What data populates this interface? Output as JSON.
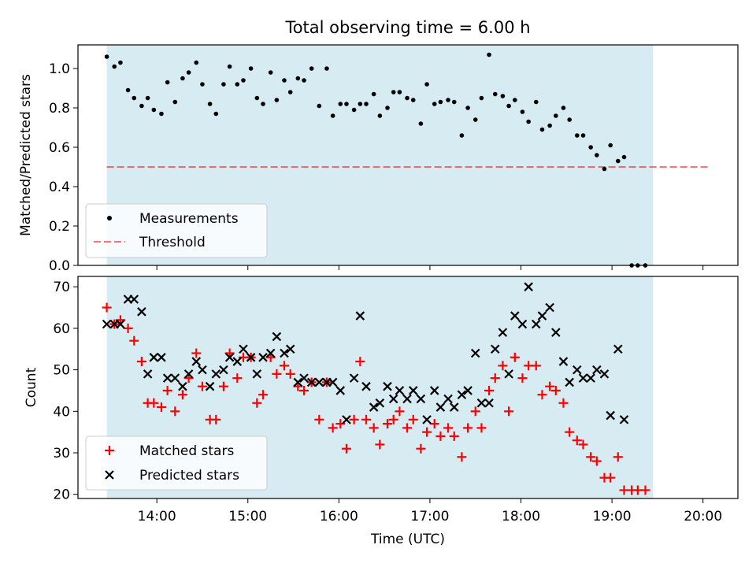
{
  "figure": {
    "title": "Total observing time = 6.00 h"
  },
  "chart_data": [
    {
      "type": "scatter",
      "title": "Total observing time = 6.00 h",
      "xlabel": "",
      "ylabel": "Matched/Predicted stars",
      "xlim": [
        "13:08",
        "20:23"
      ],
      "ylim": [
        0,
        1.12
      ],
      "yticks": [
        "0.0",
        "0.2",
        "0.4",
        "0.6",
        "0.8",
        "1.0"
      ],
      "shaded_span": {
        "start": "13:27",
        "end": "19:27",
        "color": "#add8e6"
      },
      "legend": {
        "placement": "lower left",
        "entries": [
          "Measurements",
          "Threshold"
        ]
      },
      "threshold": {
        "name": "Threshold",
        "value": 0.5,
        "x_start": "13:27",
        "x_end": "20:03",
        "color": "#ff0000"
      },
      "series": [
        {
          "name": "Measurements",
          "color": "#000000",
          "marker": "dot",
          "points": [
            [
              "13:27",
              1.06
            ],
            [
              "13:32",
              1.01
            ],
            [
              "13:36",
              1.03
            ],
            [
              "13:41",
              0.89
            ],
            [
              "13:45",
              0.85
            ],
            [
              "13:50",
              0.81
            ],
            [
              "13:54",
              0.85
            ],
            [
              "13:58",
              0.79
            ],
            [
              "14:03",
              0.77
            ],
            [
              "14:07",
              0.93
            ],
            [
              "14:12",
              0.83
            ],
            [
              "14:17",
              0.95
            ],
            [
              "14:21",
              0.98
            ],
            [
              "14:26",
              1.03
            ],
            [
              "14:30",
              0.92
            ],
            [
              "14:35",
              0.82
            ],
            [
              "14:39",
              0.77
            ],
            [
              "14:44",
              0.92
            ],
            [
              "14:48",
              1.01
            ],
            [
              "14:53",
              0.92
            ],
            [
              "14:57",
              0.94
            ],
            [
              "15:02",
              1.0
            ],
            [
              "15:06",
              0.85
            ],
            [
              "15:10",
              0.82
            ],
            [
              "15:15",
              0.98
            ],
            [
              "15:19",
              0.84
            ],
            [
              "15:24",
              0.94
            ],
            [
              "15:28",
              0.88
            ],
            [
              "15:33",
              0.95
            ],
            [
              "15:37",
              0.94
            ],
            [
              "15:42",
              1.0
            ],
            [
              "15:47",
              0.81
            ],
            [
              "15:52",
              1.0
            ],
            [
              "15:56",
              0.76
            ],
            [
              "16:01",
              0.82
            ],
            [
              "16:05",
              0.82
            ],
            [
              "16:10",
              0.79
            ],
            [
              "16:14",
              0.82
            ],
            [
              "16:18",
              0.82
            ],
            [
              "16:23",
              0.87
            ],
            [
              "16:27",
              0.76
            ],
            [
              "16:32",
              0.8
            ],
            [
              "16:36",
              0.88
            ],
            [
              "16:40",
              0.88
            ],
            [
              "16:45",
              0.85
            ],
            [
              "16:49",
              0.84
            ],
            [
              "16:54",
              0.72
            ],
            [
              "16:58",
              0.92
            ],
            [
              "17:03",
              0.82
            ],
            [
              "17:07",
              0.83
            ],
            [
              "17:12",
              0.84
            ],
            [
              "17:16",
              0.83
            ],
            [
              "17:21",
              0.66
            ],
            [
              "17:25",
              0.8
            ],
            [
              "17:30",
              0.74
            ],
            [
              "17:34",
              0.85
            ],
            [
              "17:39",
              1.07
            ],
            [
              "17:43",
              0.87
            ],
            [
              "17:48",
              0.86
            ],
            [
              "17:52",
              0.81
            ],
            [
              "17:56",
              0.84
            ],
            [
              "18:01",
              0.78
            ],
            [
              "18:05",
              0.73
            ],
            [
              "18:10",
              0.83
            ],
            [
              "18:14",
              0.69
            ],
            [
              "18:19",
              0.71
            ],
            [
              "18:23",
              0.76
            ],
            [
              "18:28",
              0.8
            ],
            [
              "18:32",
              0.74
            ],
            [
              "18:37",
              0.66
            ],
            [
              "18:41",
              0.66
            ],
            [
              "18:46",
              0.6
            ],
            [
              "18:50",
              0.56
            ],
            [
              "18:55",
              0.49
            ],
            [
              "18:59",
              0.61
            ],
            [
              "19:04",
              0.53
            ],
            [
              "19:08",
              0.55
            ],
            [
              "19:13",
              0.0
            ],
            [
              "19:17",
              0.0
            ],
            [
              "19:22",
              0.0
            ]
          ]
        }
      ]
    },
    {
      "type": "scatter",
      "title": "",
      "xlabel": "Time (UTC)",
      "ylabel": "Count",
      "xlim": [
        "13:08",
        "20:23"
      ],
      "ylim": [
        19,
        72.5
      ],
      "xticks": [
        "14:00",
        "15:00",
        "16:00",
        "17:00",
        "18:00",
        "19:00",
        "20:00"
      ],
      "yticks": [
        "20",
        "30",
        "40",
        "50",
        "60",
        "70"
      ],
      "shaded_span": {
        "start": "13:27",
        "end": "19:27",
        "color": "#add8e6"
      },
      "legend": {
        "placement": "lower left",
        "entries": [
          "Matched stars",
          "Predicted stars"
        ]
      },
      "series": [
        {
          "name": "Matched stars",
          "color": "#ff0000",
          "marker": "plus",
          "points": [
            [
              "13:27",
              65
            ],
            [
              "13:32",
              61
            ],
            [
              "13:36",
              62
            ],
            [
              "13:41",
              60
            ],
            [
              "13:45",
              57
            ],
            [
              "13:50",
              52
            ],
            [
              "13:54",
              42
            ],
            [
              "13:58",
              42
            ],
            [
              "14:03",
              41
            ],
            [
              "14:07",
              45
            ],
            [
              "14:12",
              40
            ],
            [
              "14:17",
              44
            ],
            [
              "14:21",
              48
            ],
            [
              "14:26",
              54
            ],
            [
              "14:30",
              46
            ],
            [
              "14:35",
              38
            ],
            [
              "14:39",
              38
            ],
            [
              "14:44",
              46
            ],
            [
              "14:48",
              54
            ],
            [
              "14:53",
              48
            ],
            [
              "14:57",
              53
            ],
            [
              "15:02",
              53
            ],
            [
              "15:06",
              42
            ],
            [
              "15:10",
              44
            ],
            [
              "15:15",
              53
            ],
            [
              "15:19",
              49
            ],
            [
              "15:24",
              51
            ],
            [
              "15:28",
              49
            ],
            [
              "15:33",
              46
            ],
            [
              "15:37",
              45
            ],
            [
              "15:42",
              47
            ],
            [
              "15:47",
              38
            ],
            [
              "15:52",
              47
            ],
            [
              "15:56",
              36
            ],
            [
              "16:01",
              37
            ],
            [
              "16:05",
              31
            ],
            [
              "16:10",
              38
            ],
            [
              "16:14",
              52
            ],
            [
              "16:18",
              38
            ],
            [
              "16:23",
              36
            ],
            [
              "16:27",
              32
            ],
            [
              "16:32",
              37
            ],
            [
              "16:36",
              38
            ],
            [
              "16:40",
              40
            ],
            [
              "16:45",
              36
            ],
            [
              "16:49",
              38
            ],
            [
              "16:54",
              31
            ],
            [
              "16:58",
              35
            ],
            [
              "17:03",
              37
            ],
            [
              "17:07",
              34
            ],
            [
              "17:12",
              36
            ],
            [
              "17:16",
              34
            ],
            [
              "17:21",
              29
            ],
            [
              "17:25",
              36
            ],
            [
              "17:30",
              40
            ],
            [
              "17:34",
              36
            ],
            [
              "17:39",
              45
            ],
            [
              "17:43",
              48
            ],
            [
              "17:48",
              51
            ],
            [
              "17:52",
              40
            ],
            [
              "17:56",
              53
            ],
            [
              "18:01",
              48
            ],
            [
              "18:05",
              51
            ],
            [
              "18:10",
              51
            ],
            [
              "18:14",
              44
            ],
            [
              "18:19",
              46
            ],
            [
              "18:23",
              45
            ],
            [
              "18:28",
              42
            ],
            [
              "18:32",
              35
            ],
            [
              "18:37",
              33
            ],
            [
              "18:41",
              32
            ],
            [
              "18:46",
              29
            ],
            [
              "18:50",
              28
            ],
            [
              "18:55",
              24
            ],
            [
              "18:59",
              24
            ],
            [
              "19:04",
              29
            ],
            [
              "19:08",
              21
            ],
            [
              "19:13",
              21
            ],
            [
              "19:17",
              21
            ],
            [
              "19:22",
              21
            ]
          ]
        },
        {
          "name": "Predicted stars",
          "color": "#000000",
          "marker": "x",
          "points": [
            [
              "13:27",
              61
            ],
            [
              "13:32",
              61
            ],
            [
              "13:36",
              61
            ],
            [
              "13:41",
              67
            ],
            [
              "13:45",
              67
            ],
            [
              "13:50",
              64
            ],
            [
              "13:54",
              49
            ],
            [
              "13:58",
              53
            ],
            [
              "14:03",
              53
            ],
            [
              "14:07",
              48
            ],
            [
              "14:12",
              48
            ],
            [
              "14:17",
              46
            ],
            [
              "14:21",
              49
            ],
            [
              "14:26",
              52
            ],
            [
              "14:30",
              50
            ],
            [
              "14:35",
              46
            ],
            [
              "14:39",
              49
            ],
            [
              "14:44",
              50
            ],
            [
              "14:48",
              53
            ],
            [
              "14:53",
              52
            ],
            [
              "14:57",
              55
            ],
            [
              "15:02",
              53
            ],
            [
              "15:06",
              49
            ],
            [
              "15:10",
              53
            ],
            [
              "15:15",
              54
            ],
            [
              "15:19",
              58
            ],
            [
              "15:24",
              54
            ],
            [
              "15:28",
              55
            ],
            [
              "15:33",
              47
            ],
            [
              "15:37",
              48
            ],
            [
              "15:42",
              47
            ],
            [
              "15:47",
              47
            ],
            [
              "15:52",
              47
            ],
            [
              "15:56",
              47
            ],
            [
              "16:01",
              45
            ],
            [
              "16:05",
              38
            ],
            [
              "16:10",
              48
            ],
            [
              "16:14",
              63
            ],
            [
              "16:18",
              46
            ],
            [
              "16:23",
              41
            ],
            [
              "16:27",
              42
            ],
            [
              "16:32",
              46
            ],
            [
              "16:36",
              43
            ],
            [
              "16:40",
              45
            ],
            [
              "16:45",
              43
            ],
            [
              "16:49",
              45
            ],
            [
              "16:54",
              43
            ],
            [
              "16:58",
              38
            ],
            [
              "17:03",
              45
            ],
            [
              "17:07",
              41
            ],
            [
              "17:12",
              43
            ],
            [
              "17:16",
              41
            ],
            [
              "17:21",
              44
            ],
            [
              "17:25",
              45
            ],
            [
              "17:30",
              54
            ],
            [
              "17:34",
              42
            ],
            [
              "17:39",
              42
            ],
            [
              "17:43",
              55
            ],
            [
              "17:48",
              59
            ],
            [
              "17:52",
              49
            ],
            [
              "17:56",
              63
            ],
            [
              "18:01",
              61
            ],
            [
              "18:05",
              70
            ],
            [
              "18:10",
              61
            ],
            [
              "18:14",
              63
            ],
            [
              "18:19",
              65
            ],
            [
              "18:23",
              59
            ],
            [
              "18:28",
              52
            ],
            [
              "18:32",
              47
            ],
            [
              "18:37",
              50
            ],
            [
              "18:41",
              48
            ],
            [
              "18:46",
              48
            ],
            [
              "18:50",
              50
            ],
            [
              "18:55",
              49
            ],
            [
              "18:59",
              39
            ],
            [
              "19:04",
              55
            ],
            [
              "19:08",
              38
            ]
          ]
        }
      ]
    }
  ]
}
